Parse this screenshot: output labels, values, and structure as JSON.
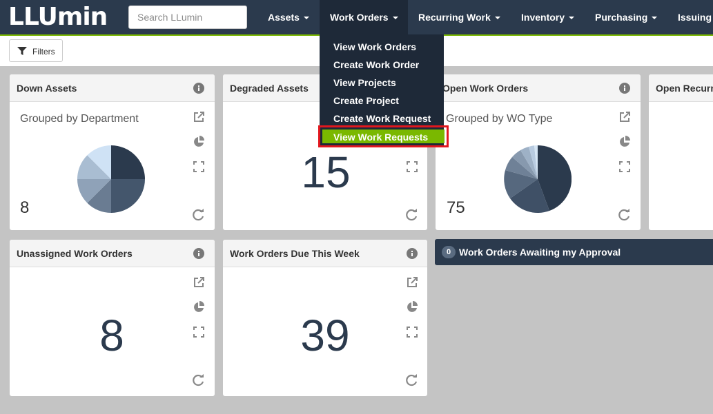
{
  "app": {
    "logo_text": "LLUmin"
  },
  "search": {
    "placeholder": "Search LLumin"
  },
  "nav": {
    "items": [
      {
        "label": "Assets"
      },
      {
        "label": "Work Orders"
      },
      {
        "label": "Recurring Work"
      },
      {
        "label": "Inventory"
      },
      {
        "label": "Purchasing"
      },
      {
        "label": "Issuing"
      }
    ],
    "dropdown": {
      "items": [
        {
          "label": "View Work Orders"
        },
        {
          "label": "Create Work Order"
        },
        {
          "label": "View Projects"
        },
        {
          "label": "Create Project"
        },
        {
          "label": "Create Work Request"
        },
        {
          "label": "View Work Requests"
        }
      ]
    }
  },
  "toolbar": {
    "filters_label": "Filters"
  },
  "widgets": {
    "down_assets": {
      "title": "Down Assets",
      "subtitle": "Grouped by Department",
      "count": "8"
    },
    "degraded_assets": {
      "title": "Degraded Assets",
      "count": "15"
    },
    "open_work_orders": {
      "title": "Open Work Orders",
      "subtitle": "Grouped by WO Type",
      "count": "75"
    },
    "open_recurring": {
      "title": "Open Recurr"
    },
    "unassigned": {
      "title": "Unassigned Work Orders",
      "count": "8"
    },
    "due_this_week": {
      "title": "Work Orders Due This Week",
      "count": "39"
    },
    "awaiting_approval": {
      "title": "Work Orders Awaiting my Approval",
      "badge": "0"
    }
  },
  "colors": {
    "navbar": "#2b3a4d",
    "accent_green": "#7ab800",
    "highlight_border": "#e1171e"
  },
  "icons": [
    "info-icon",
    "external-link-icon",
    "pie-chart-icon",
    "expand-icon",
    "refresh-icon",
    "filter-icon"
  ]
}
